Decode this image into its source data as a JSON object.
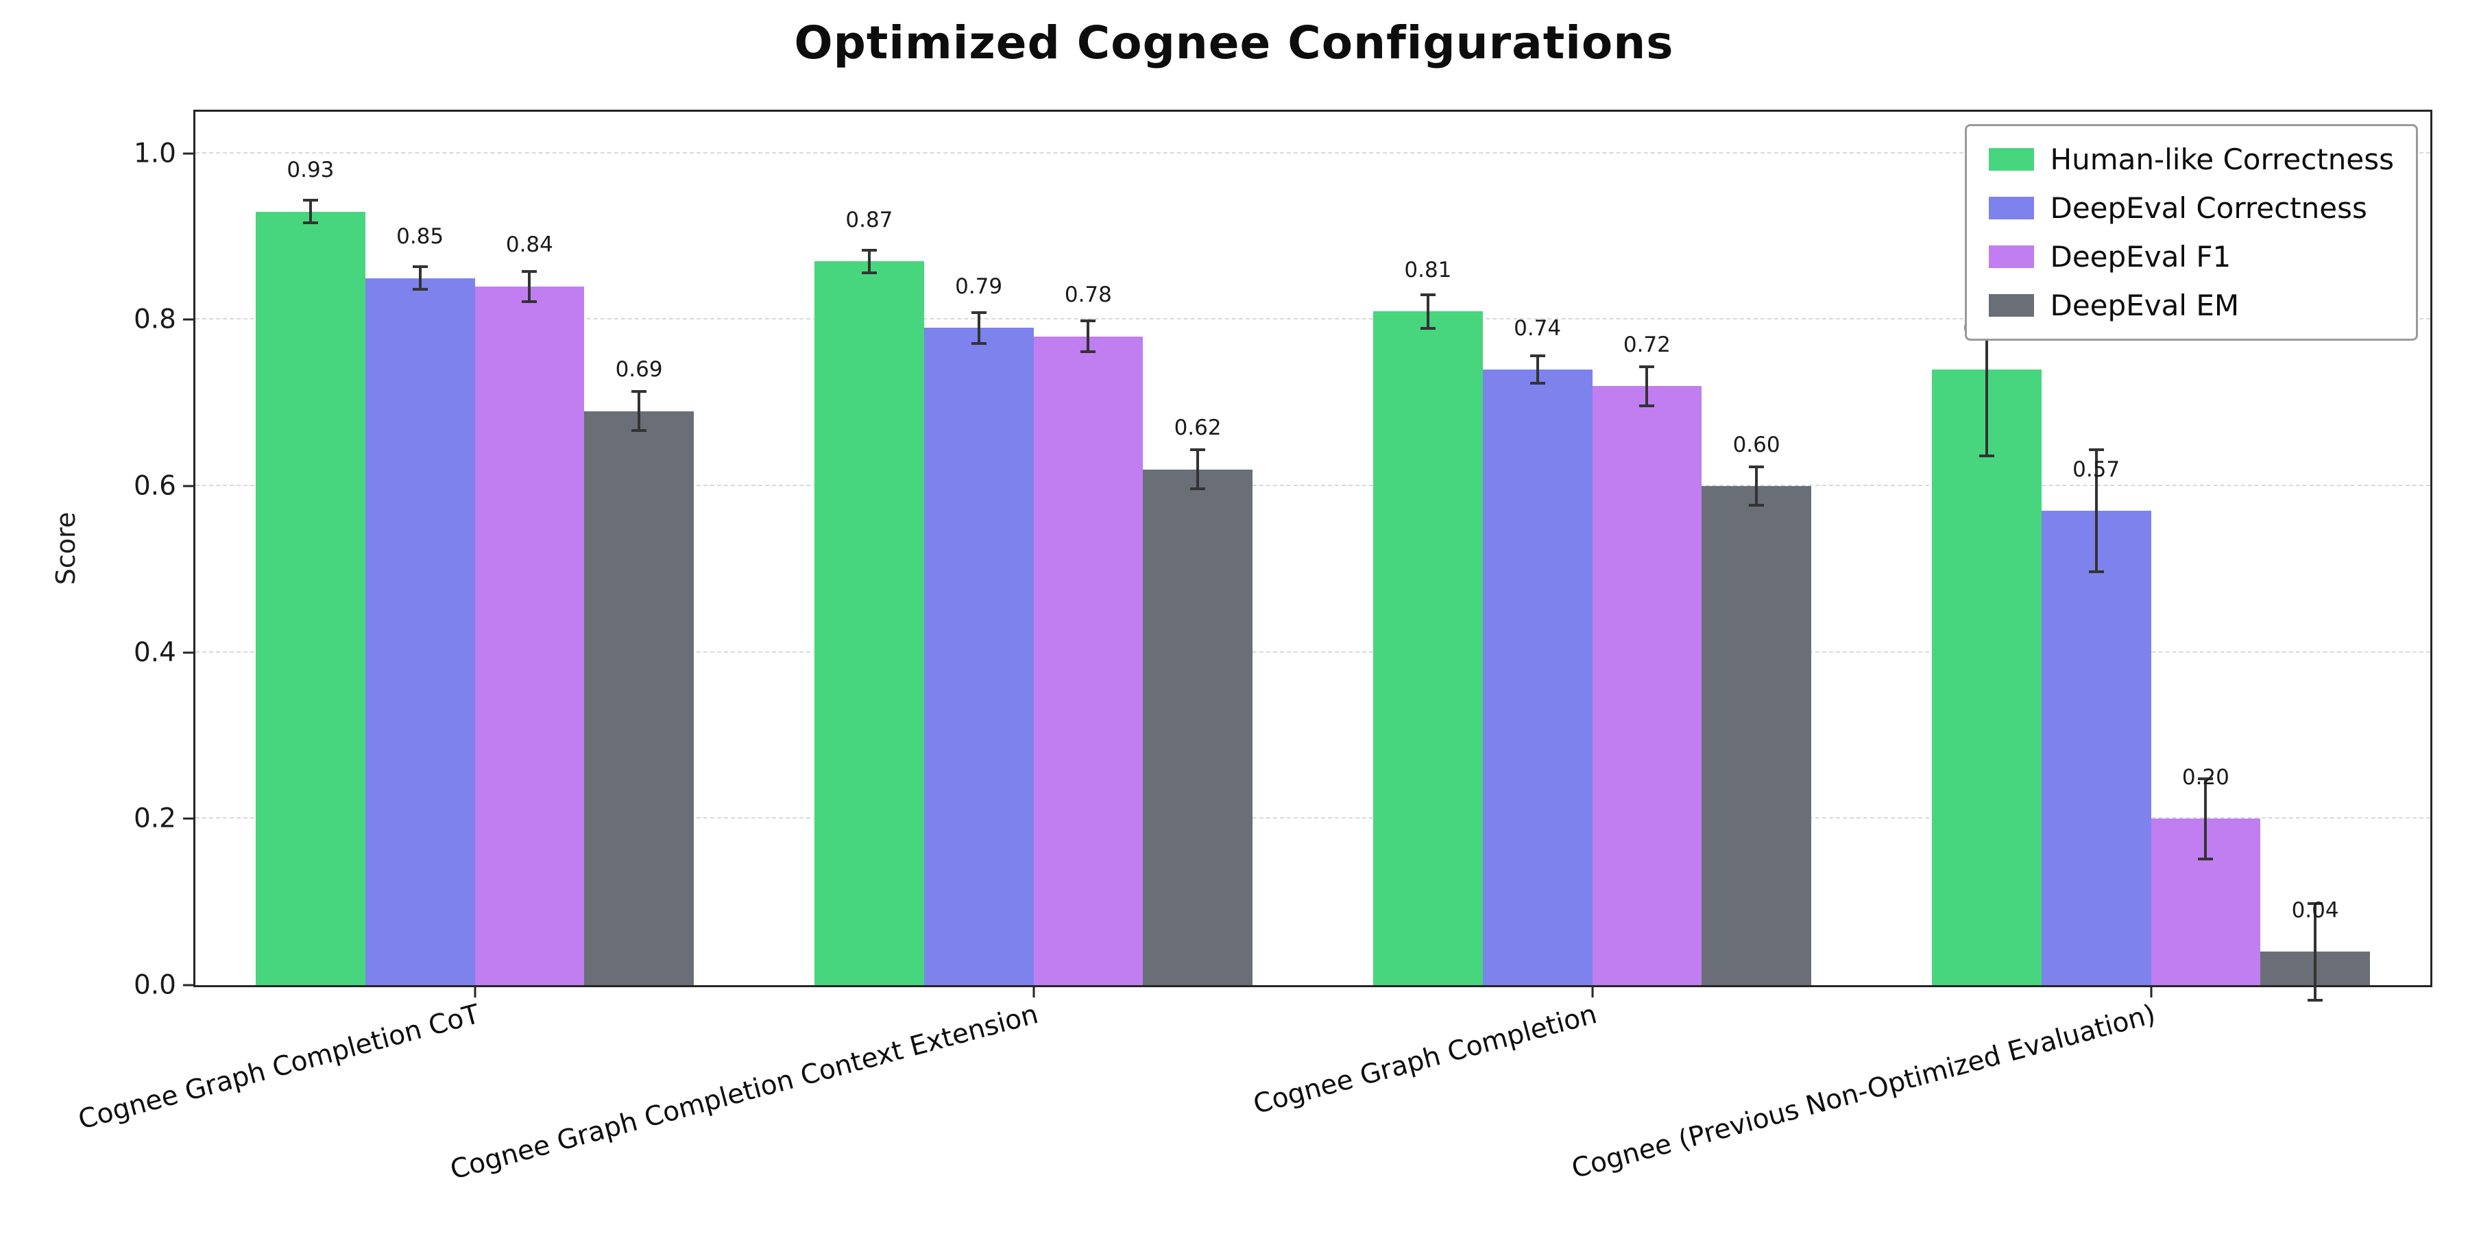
{
  "title": "Optimized Cognee Configurations",
  "chart_data": {
    "type": "bar",
    "title": "Optimized Cognee Configurations",
    "xlabel": "",
    "ylabel": "Score",
    "ylim": [
      0,
      1.05
    ],
    "yticks": [
      0.0,
      0.2,
      0.4,
      0.6,
      0.8,
      1.0
    ],
    "grid": "horizontal-dashed",
    "legend_position": "upper-right",
    "bar_value_labels": true,
    "error_bars": true,
    "categories": [
      "Cognee Graph Completion CoT",
      "Cognee Graph Completion Context Extension",
      "Cognee Graph Completion",
      "Cognee (Previous Non-Optimized Evaluation)"
    ],
    "series": [
      {
        "name": "Human-like Correctness",
        "color": "#47d67e",
        "values": [
          0.93,
          0.87,
          0.81,
          0.74
        ],
        "errors": [
          0.015,
          0.015,
          0.022,
          0.105
        ]
      },
      {
        "name": "DeepEval Correctness",
        "color": "#7d82ed",
        "values": [
          0.85,
          0.79,
          0.74,
          0.57
        ],
        "errors": [
          0.015,
          0.02,
          0.018,
          0.075
        ]
      },
      {
        "name": "DeepEval F1",
        "color": "#c07ef0",
        "values": [
          0.84,
          0.78,
          0.72,
          0.2
        ],
        "errors": [
          0.02,
          0.02,
          0.025,
          0.05
        ]
      },
      {
        "name": "DeepEval EM",
        "color": "#6a6e76",
        "values": [
          0.69,
          0.62,
          0.6,
          0.04
        ],
        "errors": [
          0.025,
          0.025,
          0.025,
          0.06
        ]
      }
    ]
  }
}
